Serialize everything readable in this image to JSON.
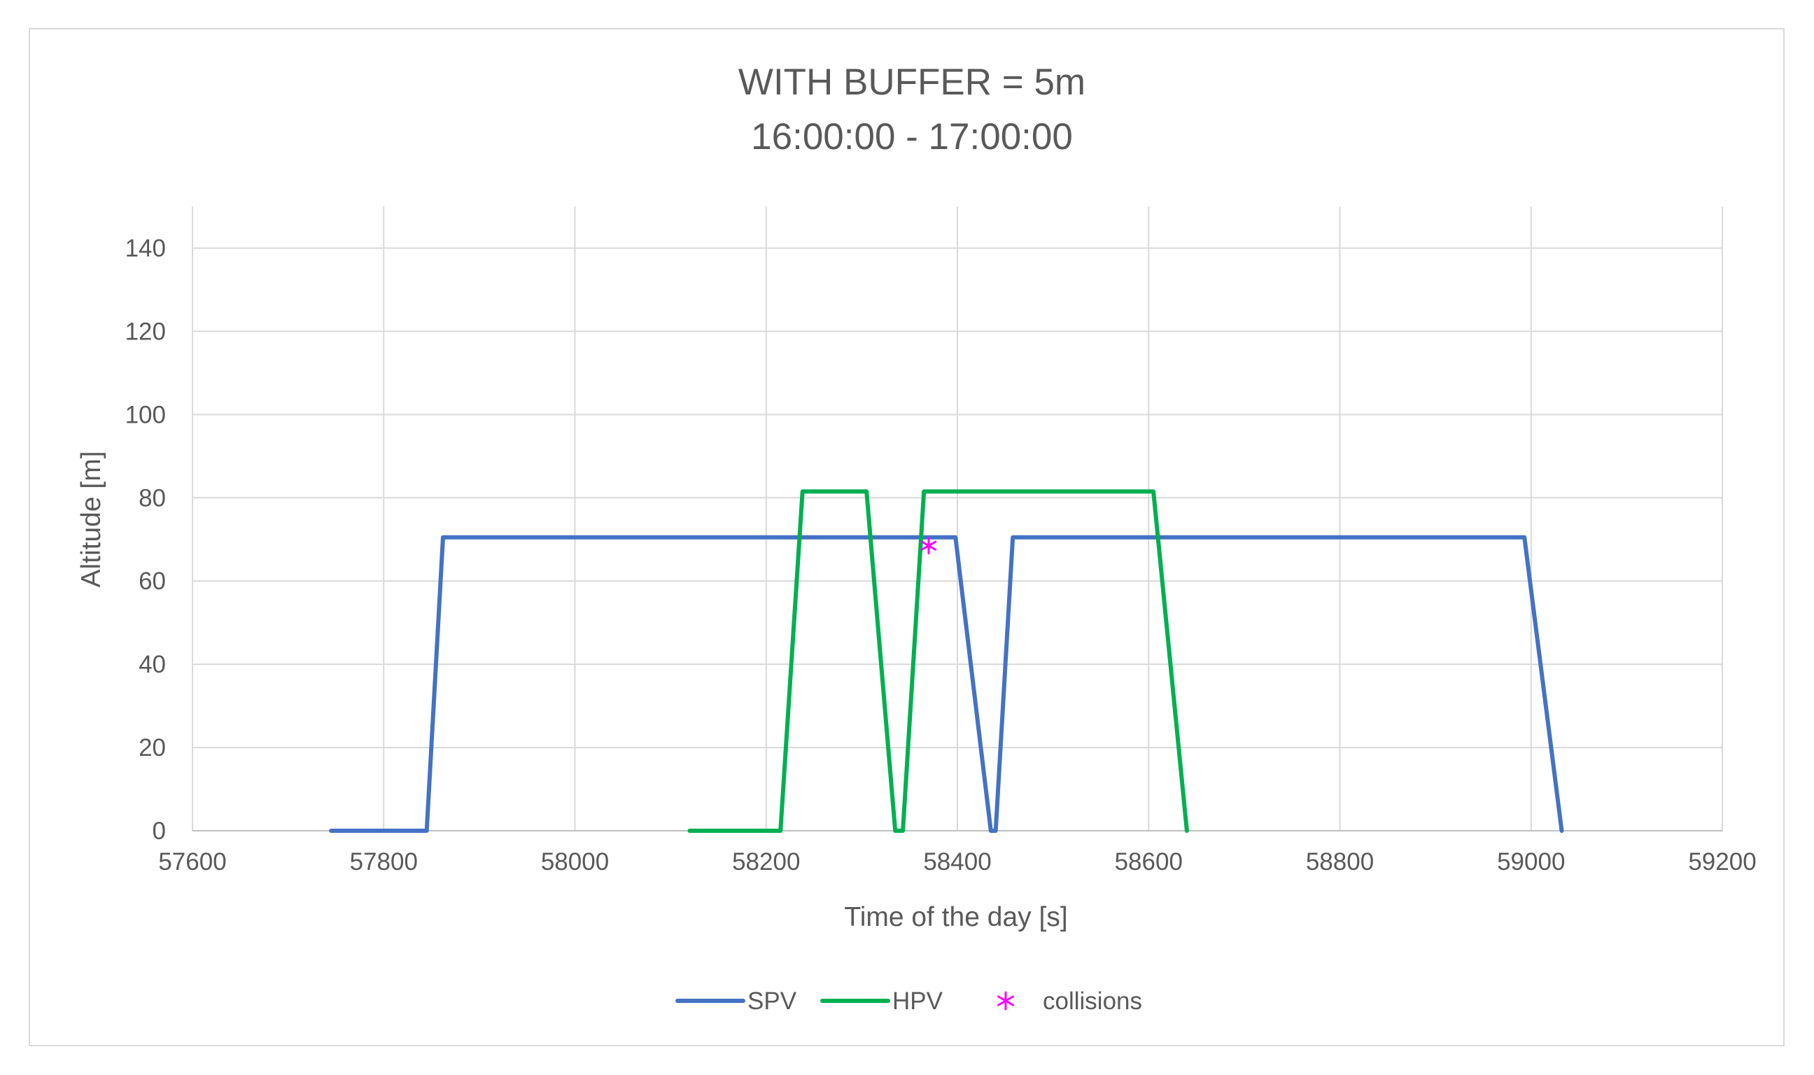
{
  "chart_data": {
    "type": "line",
    "title": "WITH BUFFER = 5m",
    "subtitle": "16:00:00 - 17:00:00",
    "xlabel": "Time of the day [s]",
    "ylabel": "Altitude [m]",
    "xlim": [
      57600,
      59200
    ],
    "ylim": [
      0,
      150
    ],
    "xticks": [
      57600,
      57800,
      58000,
      58200,
      58400,
      58600,
      58800,
      59000,
      59200
    ],
    "yticks": [
      0,
      20,
      40,
      60,
      80,
      100,
      120,
      140
    ],
    "grid": true,
    "legend": "bottom",
    "series": [
      {
        "name": "SPV",
        "color": "#4472c4",
        "points": [
          [
            57745,
            0
          ],
          [
            57845,
            0
          ],
          [
            57862,
            70.5
          ],
          [
            58398,
            70.5
          ],
          [
            58435,
            0
          ],
          [
            58440,
            0
          ],
          [
            58458,
            70.5
          ],
          [
            58993,
            70.5
          ],
          [
            59032,
            0
          ]
        ]
      },
      {
        "name": "HPV",
        "color": "#00b050",
        "points": [
          [
            58120,
            0
          ],
          [
            58215,
            0
          ],
          [
            58238,
            81.5
          ],
          [
            58305,
            81.5
          ],
          [
            58335,
            0
          ],
          [
            58343,
            0
          ],
          [
            58365,
            81.5
          ],
          [
            58605,
            81.5
          ],
          [
            58640,
            0
          ]
        ]
      }
    ],
    "markers": {
      "name": "collisions",
      "color": "#ff00ff",
      "symbol": "asterisk",
      "points": [
        [
          58370,
          68.5
        ]
      ]
    }
  }
}
